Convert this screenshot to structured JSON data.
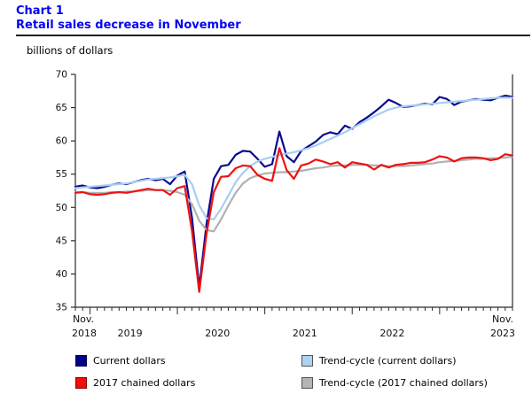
{
  "header": {
    "chart_label": "Chart 1",
    "title": "Retail sales decrease in November",
    "units": "billions of dollars"
  },
  "chart_data": {
    "type": "line",
    "title": "Retail sales decrease in November",
    "ylabel": "billions of dollars",
    "frequency": "monthly",
    "x_range": [
      "Nov. 2018",
      "Nov. 2023"
    ],
    "ylim": [
      35,
      70
    ],
    "yticks": [
      35,
      40,
      45,
      50,
      55,
      60,
      65,
      70
    ],
    "grid": "off",
    "legend_position": "bottom",
    "axis_color": "#2a2a2a",
    "tick_label_color": "#111111",
    "major_tick_months": [
      2,
      14,
      26,
      38,
      50
    ],
    "draw_order": [
      0,
      2,
      3,
      1
    ],
    "x_axis": {
      "start_month_label": "Nov.",
      "start_year_label": "2018",
      "end_month_label": "Nov.",
      "end_year_label": "2023",
      "mid_year_labels": [
        "2019",
        "2020",
        "2021",
        "2022"
      ],
      "mid_year_positions": [
        7.5,
        19.5,
        31.5,
        43.5
      ]
    },
    "series": [
      {
        "name": "Current dollars",
        "slug": "current-dollars-line",
        "color": "#0b0b91",
        "values": [
          53.1,
          53.3,
          53.0,
          52.9,
          53.1,
          53.4,
          53.6,
          53.5,
          53.8,
          54.1,
          54.3,
          54.1,
          54.3,
          53.5,
          54.8,
          55.4,
          48.5,
          38.0,
          47.5,
          54.3,
          56.2,
          56.4,
          57.9,
          58.5,
          58.4,
          57.3,
          56.1,
          56.5,
          61.4,
          57.7,
          56.8,
          58.5,
          59.2,
          59.9,
          60.9,
          61.3,
          61.0,
          62.3,
          61.8,
          62.8,
          63.5,
          64.3,
          65.2,
          66.2,
          65.7,
          65.1,
          65.2,
          65.4,
          65.6,
          65.5,
          66.6,
          66.3,
          65.4,
          65.9,
          66.1,
          66.3,
          66.2,
          66.1,
          66.5,
          66.8,
          66.6
        ]
      },
      {
        "name": "2017 chained dollars",
        "slug": "chained-dollars-line",
        "color": "#ee1111",
        "values": [
          52.2,
          52.3,
          52.0,
          51.9,
          52.0,
          52.2,
          52.3,
          52.2,
          52.4,
          52.6,
          52.8,
          52.6,
          52.6,
          51.9,
          52.9,
          53.2,
          46.5,
          37.3,
          46.0,
          52.3,
          54.6,
          54.7,
          55.9,
          56.3,
          56.2,
          54.9,
          54.3,
          54.0,
          58.9,
          55.6,
          54.3,
          56.3,
          56.6,
          57.2,
          56.9,
          56.5,
          56.8,
          56.0,
          56.8,
          56.6,
          56.4,
          55.7,
          56.4,
          56.0,
          56.4,
          56.5,
          56.7,
          56.7,
          56.8,
          57.2,
          57.7,
          57.5,
          56.9,
          57.4,
          57.5,
          57.5,
          57.4,
          57.1,
          57.3,
          58.0,
          57.8
        ]
      },
      {
        "name": "Trend-cycle (current dollars)",
        "slug": "trend-cycle-current-line",
        "color": "#a8cef2",
        "values": [
          52.9,
          53.0,
          53.1,
          53.2,
          53.3,
          53.4,
          53.5,
          53.6,
          53.8,
          54.0,
          54.2,
          54.3,
          54.4,
          54.5,
          54.7,
          54.9,
          53.5,
          50.3,
          48.4,
          48.2,
          49.8,
          51.8,
          53.8,
          55.2,
          56.2,
          56.9,
          57.3,
          57.6,
          57.9,
          58.1,
          58.3,
          58.6,
          58.9,
          59.3,
          59.8,
          60.3,
          60.8,
          61.3,
          61.9,
          62.5,
          63.1,
          63.7,
          64.2,
          64.7,
          65.0,
          65.2,
          65.3,
          65.4,
          65.5,
          65.6,
          65.7,
          65.8,
          65.9,
          66.0,
          66.1,
          66.2,
          66.3,
          66.4,
          66.5,
          66.5,
          66.5
        ]
      },
      {
        "name": "Trend-cycle (2017 chained dollars)",
        "slug": "trend-cycle-chained-line",
        "color": "#b1b1b1",
        "values": [
          52.3,
          52.3,
          52.2,
          52.2,
          52.2,
          52.3,
          52.3,
          52.4,
          52.4,
          52.5,
          52.6,
          52.6,
          52.6,
          52.5,
          52.3,
          51.9,
          50.5,
          48.0,
          46.6,
          46.4,
          48.2,
          50.3,
          52.2,
          53.6,
          54.4,
          54.8,
          55.1,
          55.2,
          55.3,
          55.3,
          55.4,
          55.5,
          55.7,
          55.9,
          56.0,
          56.2,
          56.3,
          56.3,
          56.4,
          56.4,
          56.4,
          56.3,
          56.3,
          56.2,
          56.2,
          56.2,
          56.3,
          56.4,
          56.5,
          56.6,
          56.8,
          56.9,
          57.0,
          57.1,
          57.2,
          57.3,
          57.3,
          57.4,
          57.4,
          57.5,
          57.6
        ]
      }
    ]
  },
  "legend": {
    "items": [
      {
        "label": "Current dollars",
        "color": "#00008b",
        "border": "#00004f"
      },
      {
        "label": "2017 chained dollars",
        "color": "#f20d0d",
        "border": "#8a0000"
      },
      {
        "label": "Trend-cycle (current dollars)",
        "color": "#aed1f2",
        "border": "#555555"
      },
      {
        "label": "Trend-cycle (2017 chained dollars)",
        "color": "#b4b4b4",
        "border": "#555555"
      }
    ]
  }
}
